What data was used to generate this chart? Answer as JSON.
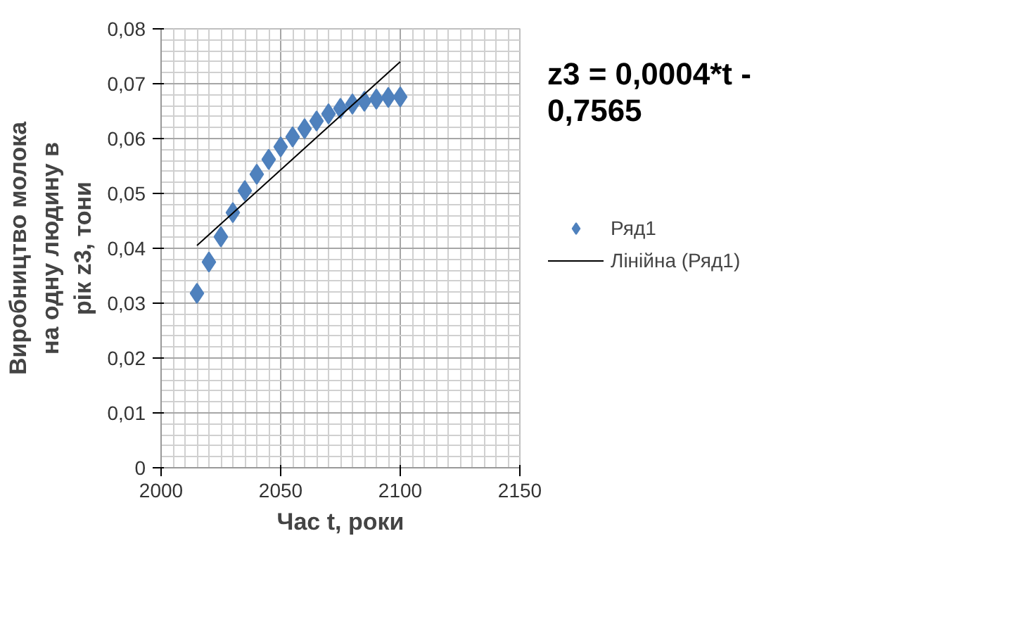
{
  "chart_data": {
    "type": "scatter",
    "xlabel": "Час t, роки",
    "ylabel": "Виробництво молока на одну людину в рік z3, тони",
    "x": [
      2015,
      2020,
      2025,
      2030,
      2035,
      2040,
      2045,
      2050,
      2055,
      2060,
      2065,
      2070,
      2075,
      2080,
      2085,
      2090,
      2095,
      2100
    ],
    "series": [
      {
        "name": "Ряд1",
        "color": "#4f81bd",
        "marker": "diamond",
        "values": [
          0.0318,
          0.0375,
          0.0421,
          0.0465,
          0.0505,
          0.0535,
          0.0562,
          0.0585,
          0.0603,
          0.0618,
          0.0632,
          0.0645,
          0.0655,
          0.0663,
          0.0668,
          0.0672,
          0.0675,
          0.0676
        ]
      },
      {
        "name": "Лінійна (Ряд1)",
        "type": "line",
        "color": "#000000",
        "marker": "none",
        "x": [
          2015,
          2100
        ],
        "values": [
          0.0405,
          0.074
        ]
      }
    ],
    "annotations": [
      "z3 = 0,0004*t - 0,7565"
    ],
    "xlim": [
      2000,
      2150
    ],
    "xticks": [
      2000,
      2050,
      2100,
      2150
    ],
    "ylim": [
      0,
      0.08
    ],
    "yticks": [
      0,
      {
        "value": 0.01,
        "label": "0,01"
      },
      {
        "value": 0.02,
        "label": "0,02"
      },
      {
        "value": 0.03,
        "label": "0,03"
      },
      {
        "value": 0.04,
        "label": "0,04"
      },
      {
        "value": 0.05,
        "label": "0,05"
      },
      {
        "value": 0.06,
        "label": "0,06"
      },
      {
        "value": 0.07,
        "label": "0,07"
      },
      {
        "value": 0.08,
        "label": "0,08"
      }
    ],
    "grid": true,
    "legend": "right"
  }
}
